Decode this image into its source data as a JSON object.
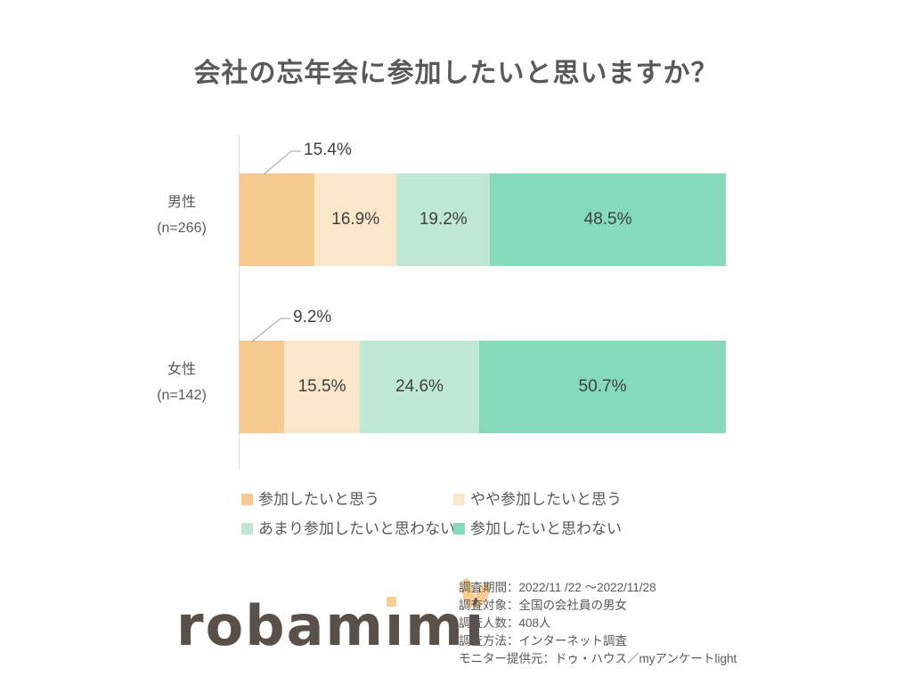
{
  "title": "会社の忘年会に参加したいと思いますか？",
  "chart_data": {
    "type": "bar",
    "orientation": "horizontal-stacked",
    "title": "会社の忘年会に参加したいと思いますか？",
    "unit": "%",
    "xlim": [
      0,
      100
    ],
    "grid": false,
    "legend_position": "bottom",
    "categories": [
      "男性 (n=266)",
      "女性 (n=142)"
    ],
    "groups": [
      {
        "label": "男性",
        "n_label": "(n=266)",
        "values": [
          15.4,
          16.9,
          19.2,
          48.5
        ]
      },
      {
        "label": "女性",
        "n_label": "(n=142)",
        "values": [
          9.2,
          15.5,
          24.6,
          50.7
        ]
      }
    ],
    "series_names": [
      "参加したいと思う",
      "やや参加したいと思う",
      "あまり参加したいと思わない",
      "参加したいと思わない"
    ],
    "colors": [
      "#f6ca8e",
      "#fae7c9",
      "#bee8d3",
      "#85dbb9"
    ],
    "label_color": "#404040",
    "axis_line_color": "#d9d9d9",
    "leader_line_color": "#a0a0a0",
    "title_color": "#595959"
  },
  "footer": {
    "logo_text": "robamimi",
    "logo_text_color": "#595049",
    "logo_accent_color": "#f8ce92",
    "survey_lines": [
      "調査期間：2022/11 /22 ～2022/11/28",
      "調査対象：全国の会社員の男女",
      "調査人数：408人",
      "調査方法：インターネット調査",
      "モニター提供元：ドゥ・ハウス／myアンケートlight"
    ]
  }
}
